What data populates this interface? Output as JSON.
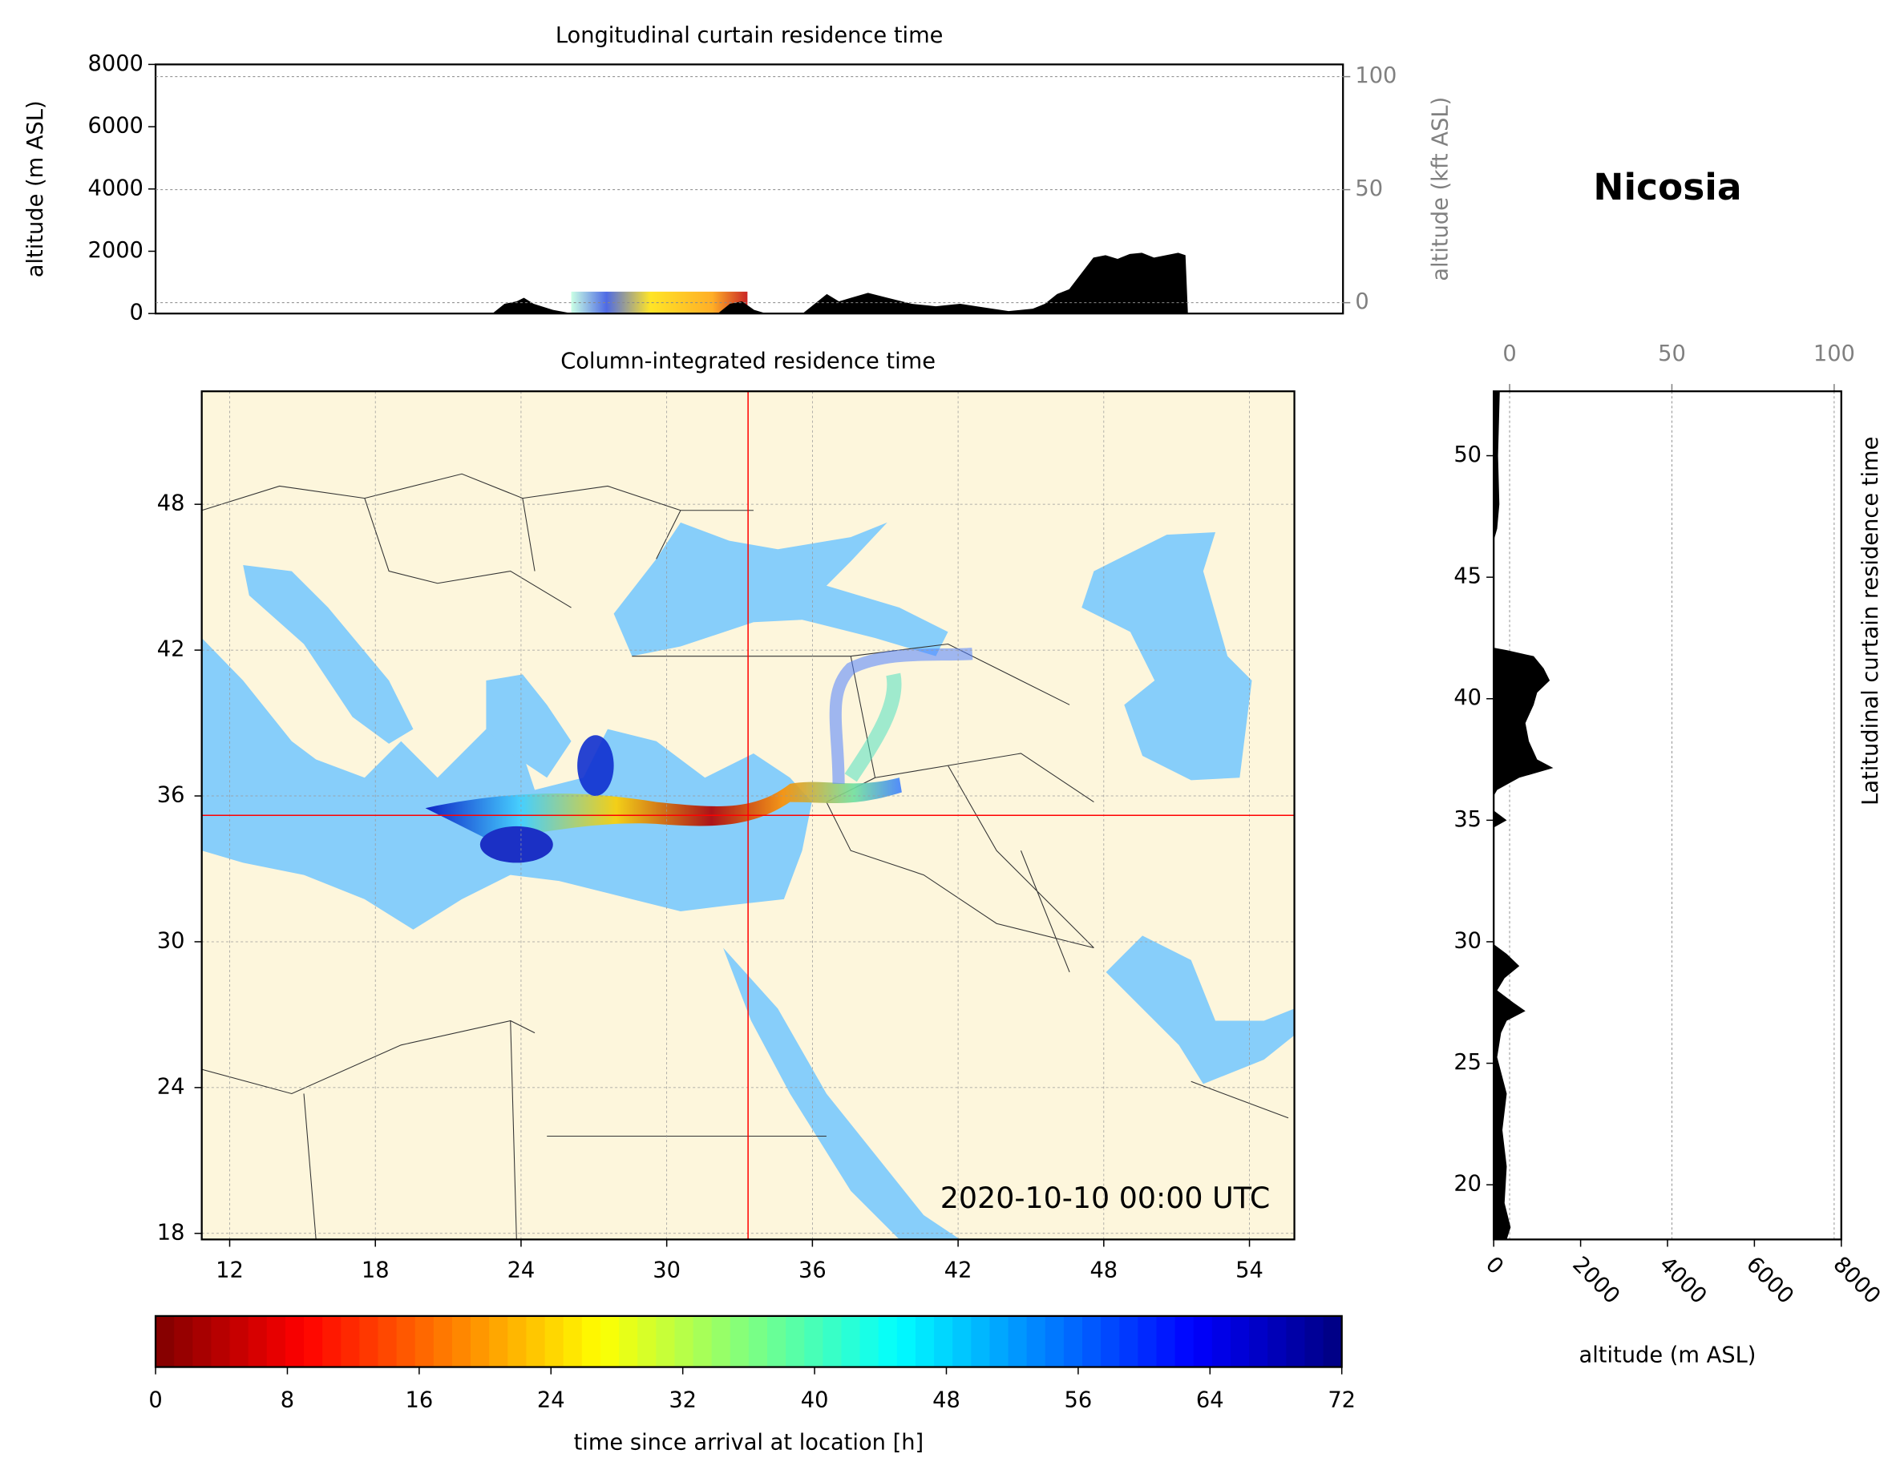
{
  "figure": {
    "location": "Nicosia"
  },
  "chart_data": [
    {
      "type": "area",
      "orientation": "vertical",
      "title": "Longitudinal curtain residence time",
      "ylabel": "altitude (m ASL)",
      "y2label": "altitude (kft ASL)",
      "x": [
        22.9,
        23.4,
        23.9,
        24.2,
        24.6,
        25.4,
        26.2,
        32.2,
        32.7,
        33.2,
        33.7,
        34.2,
        35.7,
        36.2,
        36.7,
        37.2,
        37.7,
        38.4,
        39.2,
        40.2,
        41.2,
        42.2,
        43.2,
        44.2,
        45.2,
        45.7,
        46.2,
        46.7,
        47.2,
        47.7,
        48.2,
        48.7,
        49.2,
        49.7,
        50.2,
        50.7,
        51.2,
        51.5,
        51.6
      ],
      "values": [
        0,
        312,
        390,
        507,
        312,
        117,
        0,
        0,
        312,
        390,
        117,
        0,
        0,
        312,
        624,
        390,
        507,
        663,
        507,
        312,
        234,
        312,
        195,
        78,
        156,
        312,
        624,
        780,
        1288,
        1795,
        1873,
        1756,
        1912,
        1951,
        1795,
        1873,
        1951,
        1873,
        0
      ],
      "color": "#000000",
      "xlim": [
        9,
        58
      ],
      "ylim": [
        0,
        8000
      ],
      "yticks": [
        0,
        2000,
        4000,
        6000,
        8000
      ],
      "y2lim": [
        -4.8,
        105.4
      ],
      "y2ticks": [
        0,
        50,
        100
      ],
      "grid": true
    },
    {
      "type": "map",
      "title": "Column-integrated residence time",
      "annotation": "2020-10-10 00:00 UTC",
      "xlim": [
        10.85,
        55.85
      ],
      "ylim": [
        17.75,
        52.65
      ],
      "xticks": [
        12,
        18,
        24,
        30,
        36,
        42,
        48,
        54
      ],
      "yticks": [
        18,
        24,
        30,
        36,
        42,
        48
      ],
      "grid": true,
      "land_color": "#fdf6dc",
      "sea_color": "#87cefa",
      "crosshair": {
        "lon": 33.35,
        "lat": 35.2,
        "color": "#ff0000"
      }
    },
    {
      "type": "area",
      "orientation": "horizontal",
      "xlabel": "altitude (m ASL)",
      "ylabel": "Latitudinal curtain residence time",
      "y": [
        52.65,
        50,
        48,
        47,
        46.5,
        42.1,
        42.0,
        41.75,
        41.25,
        40.75,
        40.25,
        39.75,
        39.0,
        38.25,
        37.5,
        37.15,
        36.75,
        36.25,
        36.0,
        35.4,
        35.0,
        34.7,
        29.9,
        29.5,
        29.0,
        28.5,
        28.0,
        27.5,
        27.15,
        26.75,
        26.25,
        25.25,
        23.75,
        22.25,
        20.75,
        19.25,
        18.25,
        17.75
      ],
      "values": [
        140,
        100,
        130,
        80,
        0,
        0,
        300,
        920,
        1150,
        1290,
        1000,
        920,
        730,
        810,
        1000,
        1370,
        590,
        80,
        0,
        0,
        300,
        0,
        0,
        300,
        590,
        250,
        80,
        450,
        730,
        300,
        170,
        80,
        300,
        200,
        300,
        250,
        390,
        300
      ],
      "color": "#000000",
      "xlim": [
        0,
        8000
      ],
      "xticks": [
        0,
        2000,
        4000,
        6000,
        8000
      ],
      "x2lim": [
        -4.9,
        102.2
      ],
      "x2ticks": [
        0,
        50,
        100
      ],
      "ylim": [
        17.75,
        52.65
      ],
      "yticks": [
        20,
        25,
        30,
        35,
        40,
        45,
        50
      ],
      "grid": true
    },
    {
      "type": "colorbar",
      "label": "time since arrival at location [h]",
      "lim": [
        0,
        72
      ],
      "ticks": [
        0,
        8,
        16,
        24,
        32,
        40,
        48,
        56,
        64,
        72
      ],
      "colormap": "jet_r"
    }
  ]
}
